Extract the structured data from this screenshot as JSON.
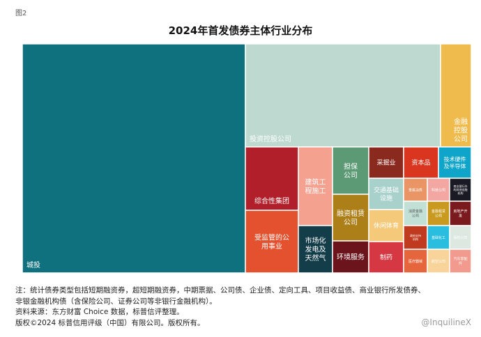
{
  "figure_label": "图2",
  "chart_data": {
    "type": "treemap",
    "title": "2024年首发债券主体行业分布",
    "series": [
      {
        "name": "城投",
        "value": 850,
        "color": "#10717e",
        "text_color": "#ffffff"
      },
      {
        "name": "投资控股公司",
        "value": 407,
        "color": "#bedad0",
        "text_color": "#ffffff"
      },
      {
        "name": "金融控股公司",
        "value": 68,
        "color": "#f0bb4d",
        "text_color": "#ffffff"
      },
      {
        "name": "综合性集团",
        "value": 54,
        "color": "#b11f2a",
        "text_color": "#ffffff"
      },
      {
        "name": "受监管的公用事业",
        "value": 59,
        "color": "#e3512e",
        "text_color": "#ffffff"
      },
      {
        "name": "建筑工程施工",
        "value": 38,
        "color": "#f4a190",
        "text_color": "#ffffff"
      },
      {
        "name": "市场化发电及天然气",
        "value": 22,
        "color": "#143d4a",
        "text_color": "#ffffff"
      },
      {
        "name": "担保公司",
        "value": 23,
        "color": "#5c9a76",
        "text_color": "#ffffff"
      },
      {
        "name": "融资租赁公司",
        "value": 23,
        "color": "#ad7f19",
        "text_color": "#ffffff"
      },
      {
        "name": "环境服务",
        "value": 15,
        "color": "#6b141c",
        "text_color": "#ffffff"
      },
      {
        "name": "采掘业",
        "value": 15,
        "color": "#8a2a1e",
        "text_color": "#ffffff"
      },
      {
        "name": "交通基础设施",
        "value": 19,
        "color": "#a8d1cc",
        "text_color": "#ffffff"
      },
      {
        "name": "休闲体育",
        "value": 11,
        "color": "#f5c97a",
        "text_color": "#ffffff"
      },
      {
        "name": "制药",
        "value": 15,
        "color": "#d63843",
        "text_color": "#ffffff"
      },
      {
        "name": "资本品",
        "value": 15,
        "color": "#d9351f",
        "text_color": "#ffffff"
      },
      {
        "name": "技术硬件及半导体",
        "value": 15,
        "color": "#0fa4c9",
        "text_color": "#ffffff"
      },
      {
        "name": "金属冶炼",
        "value": 7,
        "color": "#e99565",
        "text_color": "#ffffff"
      },
      {
        "name": "科技公司",
        "value": 5,
        "color": "#f2a7a2",
        "text_color": "#ffffff"
      },
      {
        "name": "商业银行外的其他金融机构",
        "value": 5,
        "color": "#191a24",
        "text_color": "#ffffff"
      },
      {
        "name": "消费金融公司",
        "value": 7,
        "color": "#c2e0d6",
        "text_color": "#555555"
      },
      {
        "name": "金融租赁公司",
        "value": 5,
        "color": "#c99a1f",
        "text_color": "#ffffff"
      },
      {
        "name": "房地产开发",
        "value": 5,
        "color": "#7a1a1e",
        "text_color": "#ffffff"
      },
      {
        "name": "政府支持机构",
        "value": 7,
        "color": "#c03a1f",
        "text_color": "#ffffff"
      },
      {
        "name": "基础化工",
        "value": 5,
        "color": "#29bde0",
        "text_color": "#ffffff"
      },
      {
        "name": "保险公司",
        "value": 5,
        "color": "#dde8e0",
        "text_color": "#ffffff"
      },
      {
        "name": "医疗器械",
        "value": 7,
        "color": "#e5653c",
        "text_color": "#ffffff"
      },
      {
        "name": "航空公司",
        "value": 5,
        "color": "#f9d49a",
        "text_color": "#ffffff"
      },
      {
        "name": "汽车零配件",
        "value": 5,
        "color": "#f29a8d",
        "text_color": "#ffffff"
      }
    ]
  },
  "notes": [
    "注：统计债券类型包括短期融资券，超短期融资券，中期票据、公司债、企业债、定向工具、项目收益债、商业银行所发债券、",
    "非银金融机构债（含保险公司、证券公司等非银行金融机构）。",
    "资料来源：东方财富 Choice 数据，标普信评整理。",
    "版权©2024 标普信用评级（中国）有限公司。版权所有。"
  ],
  "watermark": "@InquilineX"
}
